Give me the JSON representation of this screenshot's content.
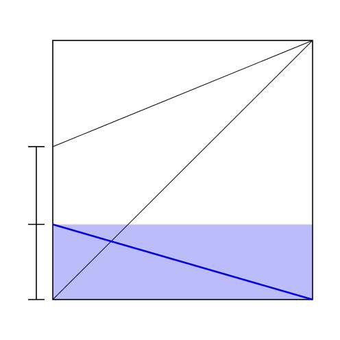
{
  "diagram": {
    "square_side": 1,
    "shaded_height_fraction": 0.29,
    "upper_segment_start_fraction": 0.59,
    "bracket_ticks_fraction": [
      0,
      0.29,
      0.59
    ],
    "colors": {
      "outline": "#000000",
      "shade": "#bcbcfb",
      "highlight_line": "#0000e0",
      "background": "#ffffff"
    }
  }
}
